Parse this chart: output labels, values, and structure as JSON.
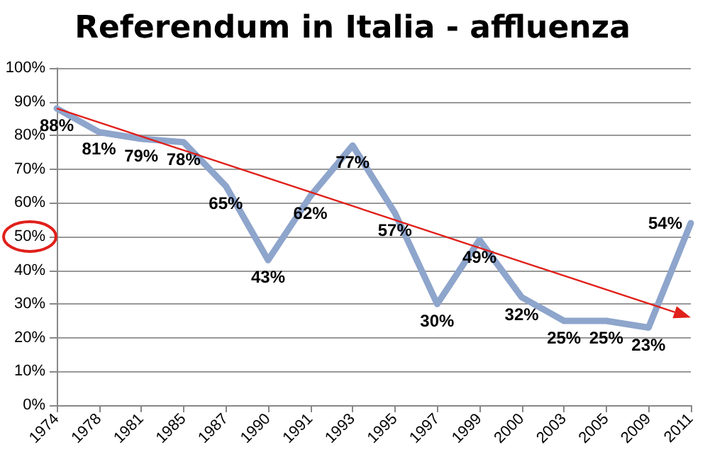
{
  "chart_data": {
    "type": "line",
    "title": "Referendum in Italia - affluenza",
    "categories": [
      "1974",
      "1978",
      "1981",
      "1985",
      "1987",
      "1990",
      "1991",
      "1993",
      "1995",
      "1997",
      "1999",
      "2000",
      "2003",
      "2005",
      "2009",
      "2011"
    ],
    "series": [
      {
        "color": "#8ea5cc",
        "values": [
          88,
          81,
          79,
          78,
          65,
          43,
          62,
          77,
          57,
          30,
          49,
          32,
          25,
          25,
          23,
          54
        ],
        "value_labels": [
          "88%",
          "81%",
          "79%",
          "78%",
          "65%",
          "43%",
          "62%",
          "77%",
          "57%",
          "30%",
          "49%",
          "32%",
          "25%",
          "25%",
          "23%",
          "54%"
        ]
      }
    ],
    "ylim": [
      0,
      100
    ],
    "yticks": [
      {
        "value": 0,
        "label": "0%"
      },
      {
        "value": 10,
        "label": "10%"
      },
      {
        "value": 20,
        "label": "20%"
      },
      {
        "value": 30,
        "label": "30%"
      },
      {
        "value": 40,
        "label": "40%"
      },
      {
        "value": 50,
        "label": "50%"
      },
      {
        "value": 60,
        "label": "60%"
      },
      {
        "value": 70,
        "label": "70%"
      },
      {
        "value": 80,
        "label": "80%"
      },
      {
        "value": 90,
        "label": "90%"
      },
      {
        "value": 100,
        "label": "100%"
      }
    ],
    "grid": "y",
    "marker": "none",
    "line_style": "solid"
  }
}
